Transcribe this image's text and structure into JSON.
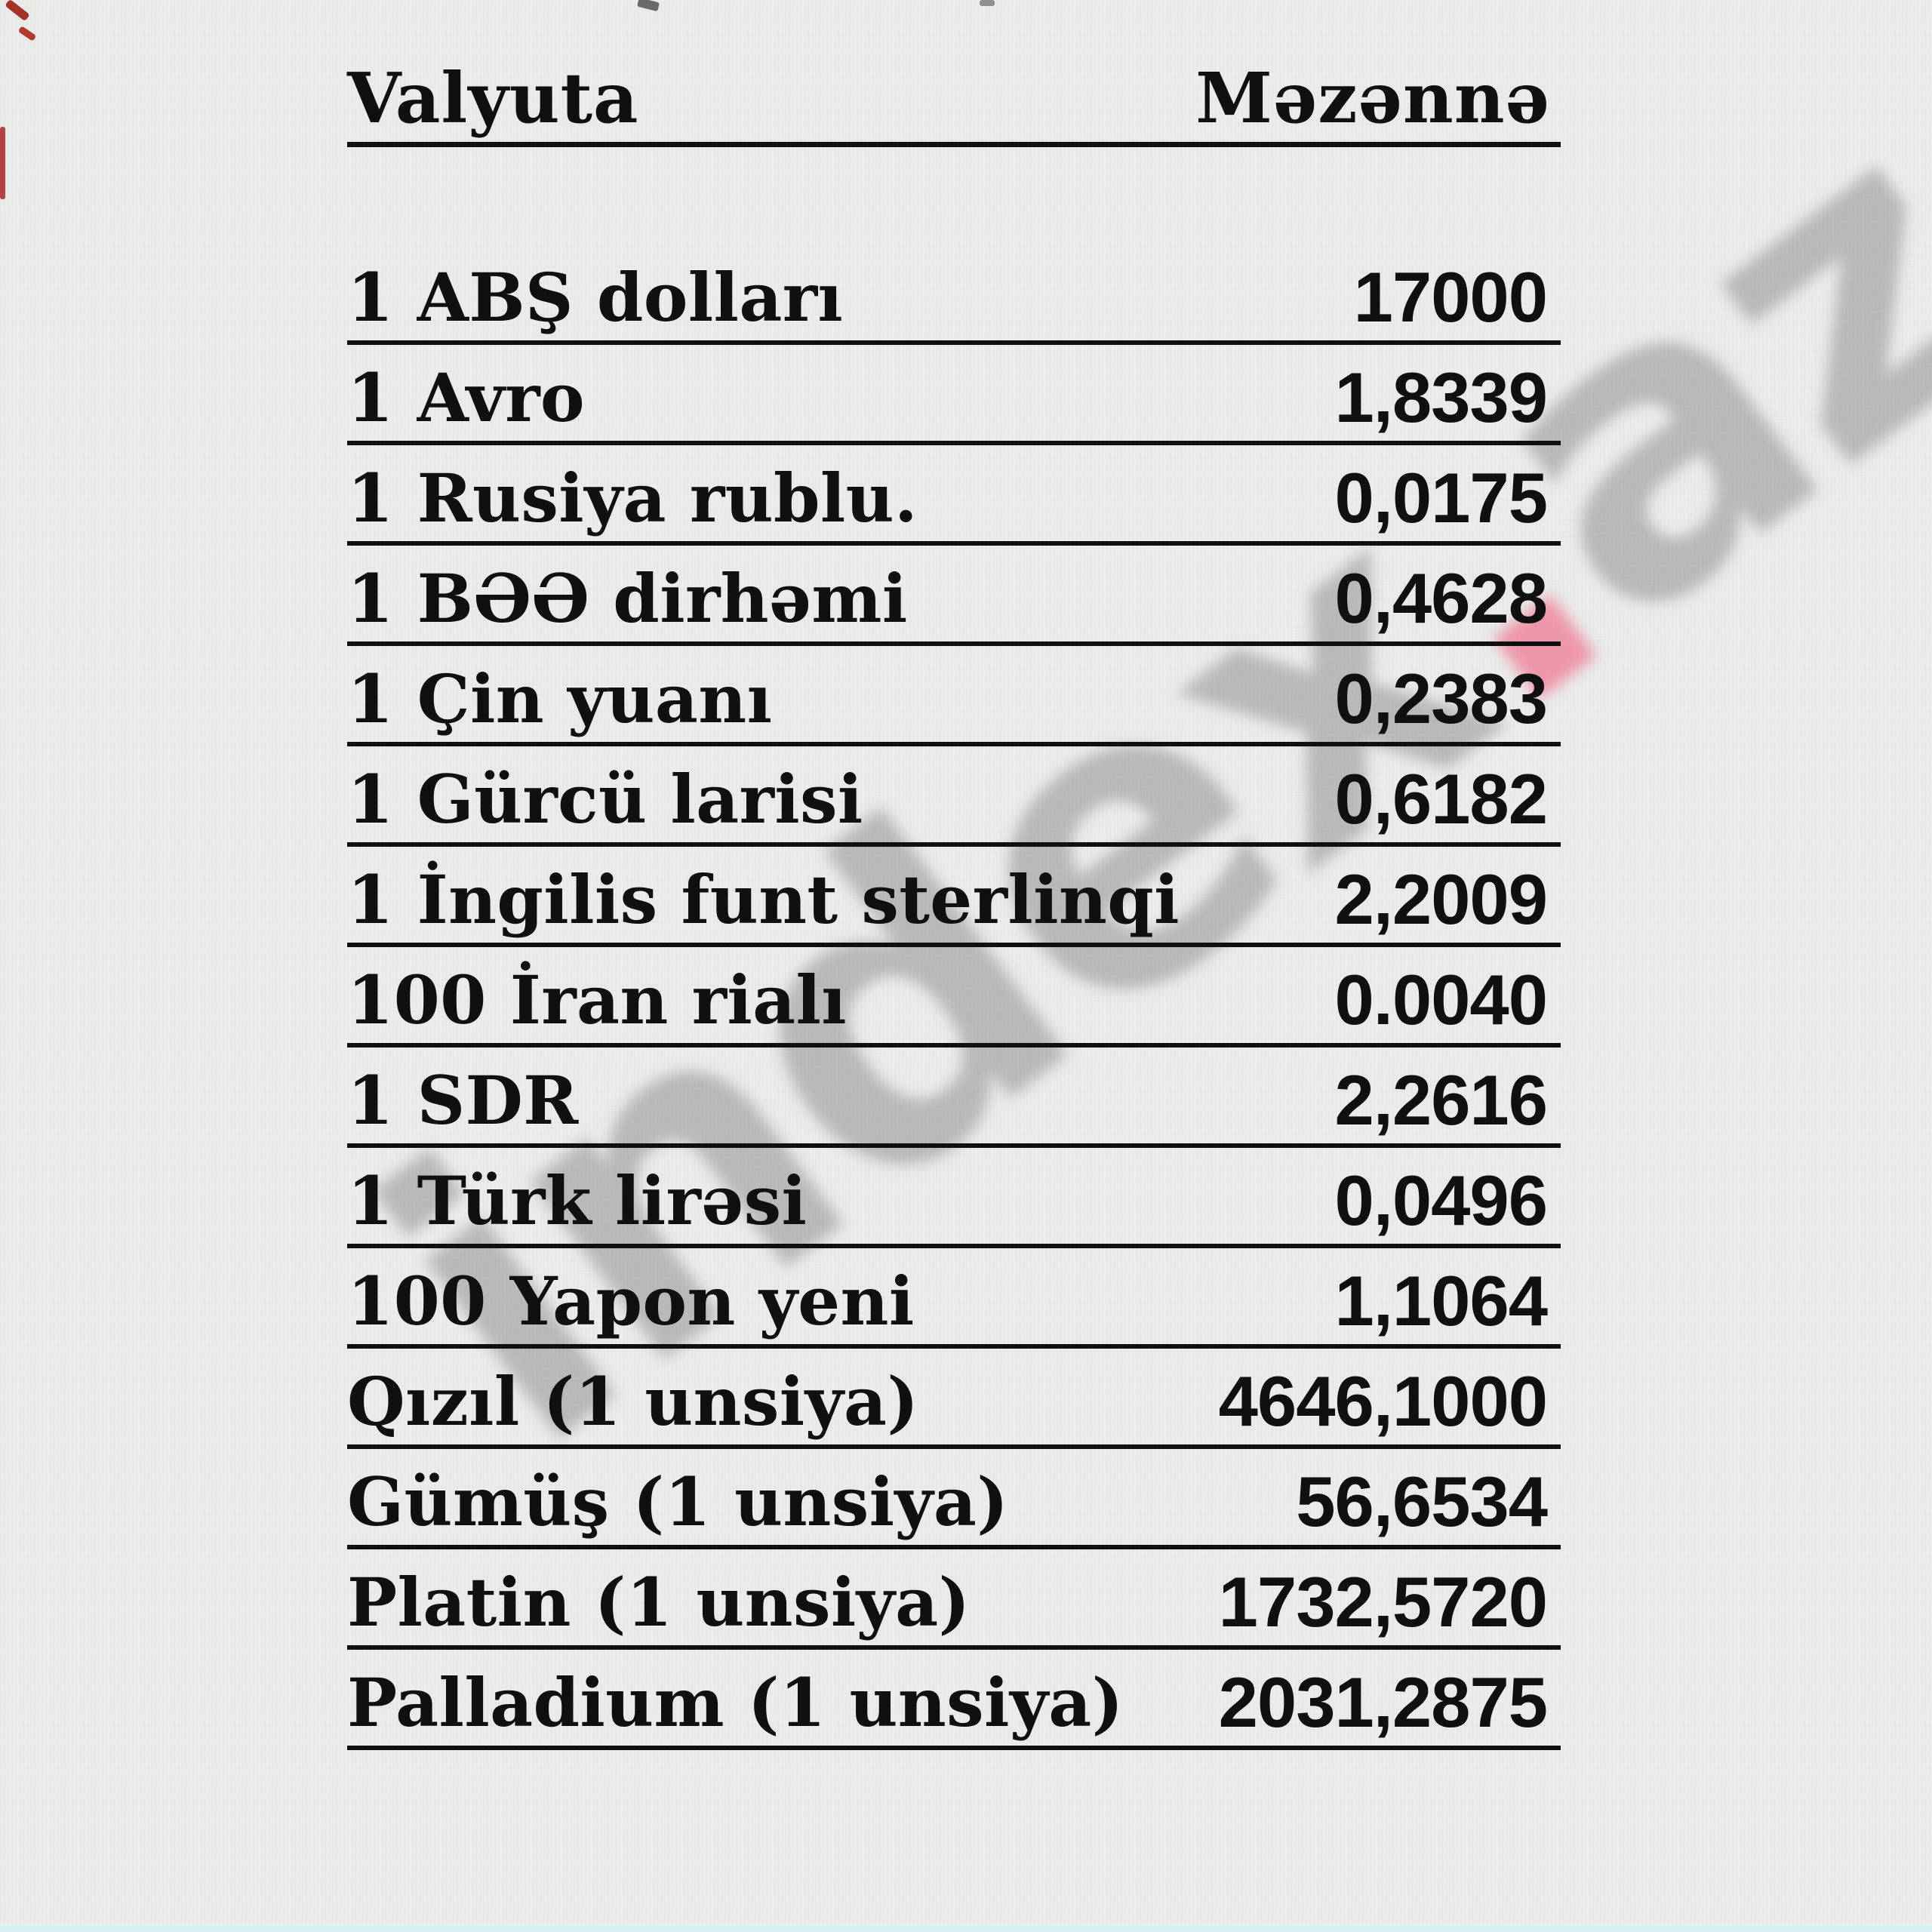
{
  "table": {
    "headers": {
      "currency": "Valyuta",
      "rate": "Məzənnə"
    },
    "rows": [
      {
        "currency": "1 ABŞ dolları",
        "rate": "17000"
      },
      {
        "currency": "1 Avro",
        "rate": "1,8339"
      },
      {
        "currency": "1 Rusiya rublu.",
        "rate": "0,0175"
      },
      {
        "currency": "1 BƏƏ dirhəmi",
        "rate": "0,4628"
      },
      {
        "currency": "1 Çin yuanı",
        "rate": "0,2383"
      },
      {
        "currency": "1 Gürcü larisi",
        "rate": "0,6182"
      },
      {
        "currency": "1 İngilis funt sterlinqi",
        "rate": "2,2009"
      },
      {
        "currency": "100 İran rialı",
        "rate": "0.0040"
      },
      {
        "currency": "1 SDR",
        "rate": "2,2616"
      },
      {
        "currency": "1 Türk lirəsi",
        "rate": "0,0496"
      },
      {
        "currency": "100 Yapon yeni",
        "rate": "1,1064"
      },
      {
        "currency": "Qızıl (1 unsiya)",
        "rate": "4646,1000"
      },
      {
        "currency": "Gümüş (1 unsiya)",
        "rate": "56,6534"
      },
      {
        "currency": "Platin (1 unsiya)",
        "rate": "1732,5720"
      },
      {
        "currency": "Palladium (1 unsiya)",
        "rate": "2031,2875"
      }
    ]
  },
  "watermark": {
    "text_before_dot": "index",
    "dot": ".",
    "text_after_dot": "az",
    "dot_color": "#ee849c",
    "text_color": "#6e6e6e"
  },
  "colors": {
    "background": "#eceeec",
    "text": "#101010",
    "rule": "#101010",
    "watermark_gray": "#6e6e6e",
    "watermark_dot_pink": "#ee849c",
    "bottom_edge_strip_cyan": "#d9f1f3",
    "scan_artifact_red": "#b23a2e"
  }
}
